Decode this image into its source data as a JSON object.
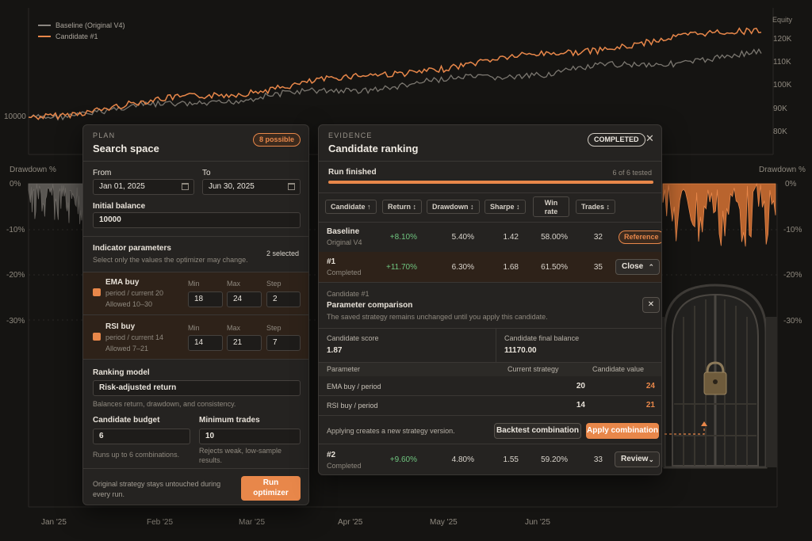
{
  "chart": {
    "legend": [
      {
        "name": "Baseline (Original V4)",
        "color": "#8b8781"
      },
      {
        "name": "Candidate #1",
        "color": "#e8874a"
      }
    ],
    "equity_label": "Equity",
    "equity_ticks": [
      "120K",
      "110K",
      "100K",
      "90K",
      "80K"
    ],
    "start_value_label": "10000",
    "drawdown_label": "Drawdown %",
    "drawdown_ticks": [
      "0%",
      "-10%",
      "-20%",
      "-30%"
    ],
    "x_ticks": [
      "Jan '25",
      "Feb '25",
      "Mar '25",
      "Apr '25",
      "May '25",
      "Jun '25"
    ]
  },
  "plan": {
    "eyebrow": "PLAN",
    "title": "Search space",
    "badge": "8 possible",
    "from_label": "From",
    "from_value": "Jan 01, 2025",
    "to_label": "To",
    "to_value": "Jun 30, 2025",
    "balance_label": "Initial balance",
    "balance_value": "10000",
    "indicators_title": "Indicator parameters",
    "indicators_sub": "Select only the values the optimizer may change.",
    "indicators_count": "2 selected",
    "col_min": "Min",
    "col_max": "Max",
    "col_step": "Step",
    "params": [
      {
        "name": "EMA buy",
        "desc": "period / current 20",
        "allowed": "Allowed 10–30",
        "min": "18",
        "max": "24",
        "step": "2"
      },
      {
        "name": "RSI buy",
        "desc": "period / current 14",
        "allowed": "Allowed 7–21",
        "min": "14",
        "max": "21",
        "step": "7"
      }
    ],
    "ranking_label": "Ranking model",
    "ranking_value": "Risk-adjusted return",
    "ranking_sub": "Balances return, drawdown, and consistency.",
    "budget_label": "Candidate budget",
    "budget_value": "6",
    "budget_sub": "Runs up to 6 combinations.",
    "mintrades_label": "Minimum trades",
    "mintrades_value": "10",
    "mintrades_sub": "Rejects weak, low-sample results.",
    "footer_note": "Original strategy stays untouched during every run.",
    "run_label": "Run optimizer"
  },
  "evidence": {
    "eyebrow": "EVIDENCE",
    "title": "Candidate ranking",
    "status": "COMPLETED",
    "run_label": "Run finished",
    "run_count": "6 of 6 tested",
    "progress": 1.0,
    "headers": [
      "Candidate ↑",
      "Return ↕",
      "Drawdown ↕",
      "Sharpe ↕",
      "Win rate",
      "Trades ↕"
    ],
    "rows": [
      {
        "name": "Baseline",
        "sub": "Original V4",
        "ret": "+8.10%",
        "dd": "5.40%",
        "sharpe": "1.42",
        "win": "58.00%",
        "trades": "32",
        "action": "Reference"
      },
      {
        "name": "#1",
        "sub": "Completed",
        "ret": "+11.70%",
        "dd": "6.30%",
        "sharpe": "1.68",
        "win": "61.50%",
        "trades": "35",
        "action": "Close"
      }
    ],
    "detail": {
      "eyebrow": "Candidate #1",
      "title": "Parameter comparison",
      "sub": "The saved strategy remains unchanged until you apply this candidate.",
      "score_label": "Candidate score",
      "score_value": "1.87",
      "balance_label": "Candidate final balance",
      "balance_value": "11170.00",
      "table_headers": [
        "Parameter",
        "Current strategy",
        "Candidate value"
      ],
      "params": [
        {
          "name": "EMA buy / period",
          "current": "20",
          "candidate": "24"
        },
        {
          "name": "RSI buy / period",
          "current": "14",
          "candidate": "21"
        }
      ],
      "apply_note": "Applying creates a new strategy version.",
      "backtest_label": "Backtest combination",
      "apply_label": "Apply combination"
    },
    "row2": {
      "name": "#2",
      "sub": "Completed",
      "ret": "+9.60%",
      "dd": "4.80%",
      "sharpe": "1.55",
      "win": "59.20%",
      "trades": "33",
      "action": "Review"
    }
  }
}
